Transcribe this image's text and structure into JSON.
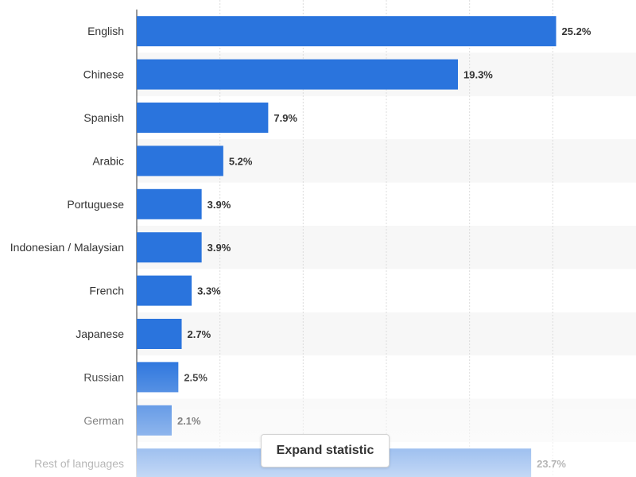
{
  "chart_data": {
    "type": "bar",
    "orientation": "horizontal",
    "categories": [
      "English",
      "Chinese",
      "Spanish",
      "Arabic",
      "Portuguese",
      "Indonesian / Malaysian",
      "French",
      "Japanese",
      "Russian",
      "German",
      "Rest of languages"
    ],
    "values": [
      25.2,
      19.3,
      7.9,
      5.2,
      3.9,
      3.9,
      3.3,
      2.7,
      2.5,
      2.1,
      23.7
    ],
    "value_labels": [
      "25.2%",
      "19.3%",
      "7.9%",
      "5.2%",
      "3.9%",
      "3.9%",
      "3.3%",
      "2.7%",
      "2.5%",
      "2.1%",
      "23.7%"
    ],
    "unit": "%",
    "xlim": [
      0,
      30
    ],
    "grid": true,
    "title": "",
    "xlabel": "",
    "ylabel": "",
    "bar_color": "#2a74dd",
    "alternate_row_color": "#f7f7f7"
  },
  "expand_button": {
    "label": "Expand statistic"
  }
}
